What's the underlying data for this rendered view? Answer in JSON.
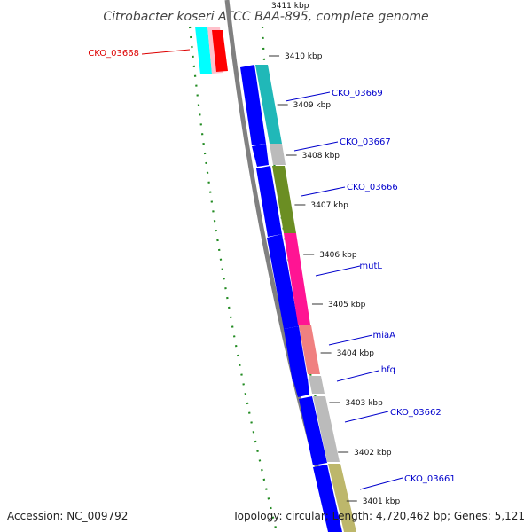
{
  "title": "Citrobacter koseri ATCC BAA-895, complete genome",
  "top_tick_label": "3411 kbp",
  "footer": {
    "accession": "Accession: NC_009792",
    "summary": "Topology: circular; Length: 4,720,462 bp; Genes: 5,121"
  },
  "kbp_ticks": [
    {
      "label": "3410 kbp"
    },
    {
      "label": "3409 kbp"
    },
    {
      "label": "3408 kbp"
    },
    {
      "label": "3407 kbp"
    },
    {
      "label": "3406 kbp"
    },
    {
      "label": "3405 kbp"
    },
    {
      "label": "3404 kbp"
    },
    {
      "label": "3403 kbp"
    },
    {
      "label": "3402 kbp"
    },
    {
      "label": "3401 kbp"
    }
  ],
  "genes": [
    {
      "name": "CKO_03668",
      "label_color": "#dd0000",
      "fill": "#ff0000"
    },
    {
      "name": "CKO_03669",
      "label_color": "#0000cc",
      "fill": "#20b8b8"
    },
    {
      "name": "CKO_03667",
      "label_color": "#0000cc",
      "fill": "#bbbbbb"
    },
    {
      "name": "CKO_03666",
      "label_color": "#0000cc",
      "fill": "#6b8e23"
    },
    {
      "name": "mutL",
      "label_color": "#0000cc",
      "fill": "#ff1493"
    },
    {
      "name": "miaA",
      "label_color": "#0000cc",
      "fill": "#f08080"
    },
    {
      "name": "hfq",
      "label_color": "#0000cc",
      "fill": "#bbbbbb"
    },
    {
      "name": "CKO_03662",
      "label_color": "#0000cc",
      "fill": "#bbbbbb"
    },
    {
      "name": "CKO_03661",
      "label_color": "#0000cc",
      "fill": "#bdb76b"
    }
  ],
  "colors": {
    "backbone": "#808080",
    "cds": "#0000ff",
    "gc_skew": "#228b22",
    "top_cyan": "#00ffff",
    "top_pink": "#ffc0cb"
  }
}
